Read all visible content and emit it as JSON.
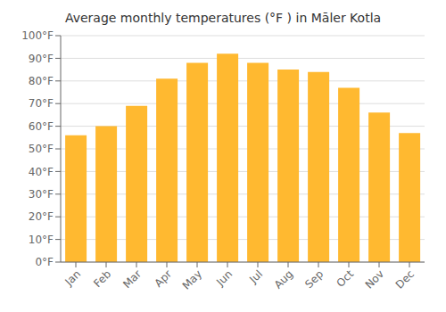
{
  "chart_data": {
    "type": "bar",
    "title": "Average monthly temperatures (°F ) in Māler Kotla",
    "categories": [
      "Jan",
      "Feb",
      "Mar",
      "Apr",
      "May",
      "Jun",
      "Jul",
      "Aug",
      "Sep",
      "Oct",
      "Nov",
      "Dec"
    ],
    "values": [
      56,
      60,
      69,
      81,
      88,
      92,
      88,
      85,
      84,
      77,
      66,
      57
    ],
    "color": "#FFB930",
    "ylim": [
      0,
      100
    ],
    "yticks": [
      {
        "value": 0,
        "label": "0°F"
      },
      {
        "value": 10,
        "label": "10°F"
      },
      {
        "value": 20,
        "label": "20°F"
      },
      {
        "value": 30,
        "label": "30°F"
      },
      {
        "value": 40,
        "label": "40°F"
      },
      {
        "value": 50,
        "label": "50°F"
      },
      {
        "value": 60,
        "label": "60°F"
      },
      {
        "value": 70,
        "label": "70°F"
      },
      {
        "value": 80,
        "label": "80°F"
      },
      {
        "value": 90,
        "label": "90°F"
      },
      {
        "value": 100,
        "label": "100°F"
      }
    ],
    "grid": true
  }
}
